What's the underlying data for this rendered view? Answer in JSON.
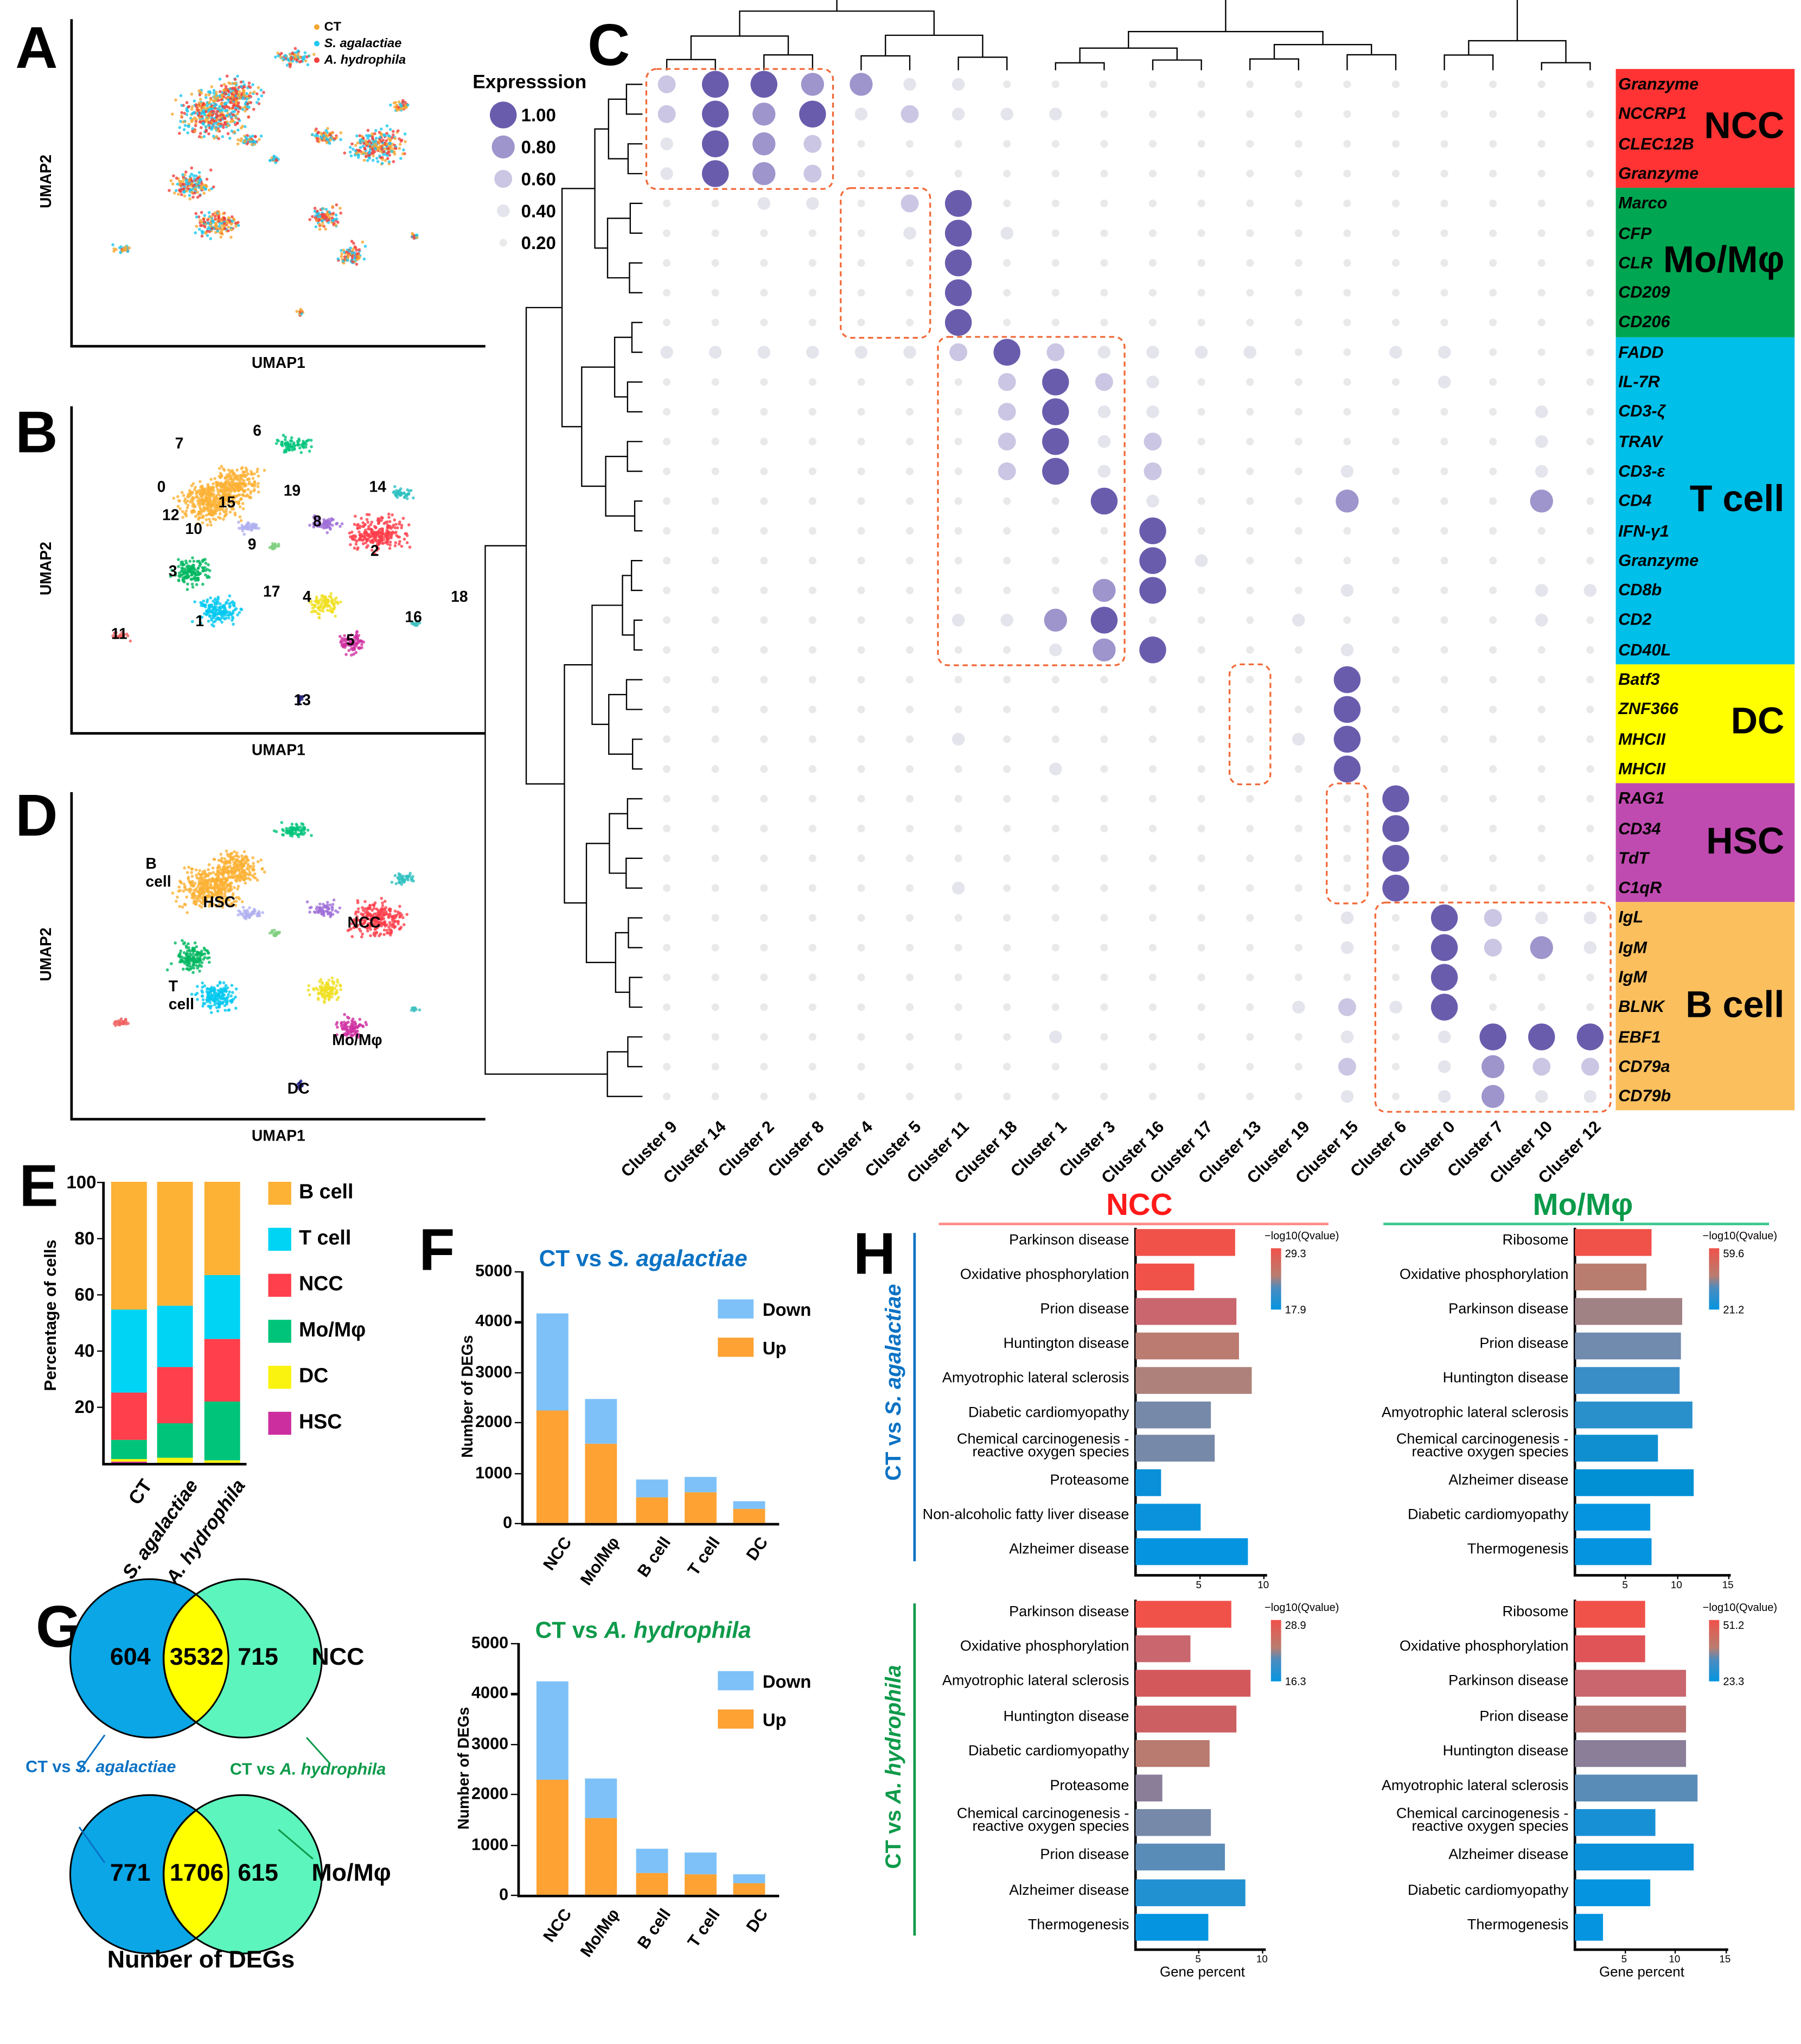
{
  "panels": {
    "A": "A",
    "B": "B",
    "C": "C",
    "D": "D",
    "E": "E",
    "F": "F",
    "G": "G",
    "H": "H"
  },
  "umap": {
    "xlabel": "UMAP1",
    "ylabel": "UMAP2",
    "legend": [
      {
        "label": "CT",
        "color": "#f7a733"
      },
      {
        "label": "S. agalactiae",
        "color": "#1ec8f0"
      },
      {
        "label": "A. hydrophila",
        "color": "#f0403c"
      }
    ],
    "cluster_labels": [
      "0",
      "1",
      "2",
      "3",
      "4",
      "5",
      "6",
      "7",
      "8",
      "9",
      "10",
      "11",
      "12",
      "13",
      "14",
      "15",
      "16",
      "17",
      "18",
      "19"
    ],
    "celltype_labels": [
      "B cell",
      "HSC",
      "NCC",
      "T cell",
      "Mo/Mφ",
      "DC"
    ]
  },
  "expression_legend": {
    "title": "Expresssion",
    "levels": [
      "1.00",
      "0.80",
      "0.60",
      "0.40",
      "0.20"
    ]
  },
  "chart_data": [
    {
      "type": "dotplot",
      "id": "C",
      "clusters": [
        "Cluster 9",
        "Cluster 14",
        "Cluster 2",
        "Cluster 8",
        "Cluster 4",
        "Cluster 5",
        "Cluster 11",
        "Cluster 18",
        "Cluster 1",
        "Cluster 3",
        "Cluster 16",
        "Cluster 17",
        "Cluster 13",
        "Cluster 19",
        "Cluster 15",
        "Cluster 6",
        "Cluster 0",
        "Cluster 7",
        "Cluster 10",
        "Cluster 12"
      ],
      "genes": [
        "Granzyme",
        "NCCRP1",
        "CLEC12B",
        "Granzyme",
        "Marco",
        "CFP",
        "CLR",
        "CD209",
        "CD206",
        "FADD",
        "IL-7R",
        "CD3-ζ",
        "TRAV",
        "CD3-ε",
        "CD4",
        "IFN-γ1",
        "Granzyme",
        "CD8b",
        "CD2",
        "CD40L",
        "Batf3",
        "ZNF366",
        "MHCII",
        "MHCII",
        "RAG1",
        "CD34",
        "TdT",
        "C1qR",
        "IgL",
        "IgM",
        "IgM",
        "BLNK",
        "EBF1",
        "CD79a",
        "CD79b"
      ],
      "groups": [
        {
          "label": "NCC",
          "start": 0,
          "end": 3,
          "color": "#ff3333"
        },
        {
          "label": "Mo/Mφ",
          "start": 4,
          "end": 8,
          "color": "#00a651"
        },
        {
          "label": "T cell",
          "start": 9,
          "end": 19,
          "color": "#00bfe8"
        },
        {
          "label": "DC",
          "start": 20,
          "end": 23,
          "color": "#ffff00"
        },
        {
          "label": "HSC",
          "start": 24,
          "end": 27,
          "color": "#c04bb0"
        },
        {
          "label": "B cell",
          "start": 28,
          "end": 34,
          "color": "#fbbf5e"
        }
      ],
      "boxes": [
        {
          "c0": 0,
          "c1": 3,
          "r0": 0,
          "r1": 3
        },
        {
          "c0": 4,
          "c1": 5,
          "r0": 4,
          "r1": 8
        },
        {
          "c0": 6,
          "c1": 9,
          "r0": 9,
          "r1": 19
        },
        {
          "c0": 12,
          "c1": 12,
          "r0": 20,
          "r1": 23
        },
        {
          "c0": 14,
          "c1": 14,
          "r0": 24,
          "r1": 27
        },
        {
          "c0": 15,
          "c1": 19,
          "r0": 28,
          "r1": 34
        }
      ],
      "expression_levels": [
        0,
        0.2,
        0.4,
        0.6,
        0.8,
        1.0
      ],
      "matrix": [
        "35544221111111111111",
        "35452322211111111111",
        "25431111111111111111",
        "25431111111111111111",
        "11221351111111111111",
        "11111252111111111111",
        "11111151111111111111",
        "11111151111111111111",
        "11111151111111111111",
        "22222235322221122111",
        "11111113532111112111",
        "11111113522111111121",
        "11111113523111111121",
        "11111113523111211121",
        "11111111152111411141",
        "11111111115111111111",
        "11111111115211111111",
        "11111111145111211122",
        "11111122451112111121",
        "11111111245111211111",
        "11111111111111511111",
        "11111111111111511111",
        "11111121111112511111",
        "11111111211111511111",
        "11111111111111151111",
        "11111111111111151111",
        "11111111111111151111",
        "11111121111111151111",
        "11111111111111215322",
        "11111111111111215342",
        "11111111111111115111",
        "11111111111112325111",
        "11111111211111212555",
        "11111111111111312433",
        "11111111111111212422"
      ]
    },
    {
      "type": "bar",
      "id": "E",
      "stacked": true,
      "ylabel": "Percentage of cells",
      "ylim": [
        0,
        100
      ],
      "yticks": [
        20,
        40,
        60,
        80,
        100
      ],
      "categories": [
        "CT",
        "S. agalactiae",
        "A. hydrophila"
      ],
      "series": [
        {
          "name": "HSC",
          "color": "#cc2e9f",
          "values": [
            0.5,
            0,
            0
          ]
        },
        {
          "name": "DC",
          "color": "#faf30f",
          "values": [
            1,
            2,
            1
          ]
        },
        {
          "name": "Mo/Mφ",
          "color": "#00c47a",
          "values": [
            6.5,
            12,
            21
          ]
        },
        {
          "name": "NCC",
          "color": "#ff3f4b",
          "values": [
            17,
            20,
            22
          ]
        },
        {
          "name": "T cell",
          "color": "#00d4f4",
          "values": [
            29.5,
            22,
            23
          ]
        },
        {
          "name": "B cell",
          "color": "#fdb235",
          "values": [
            45.5,
            44,
            33
          ]
        }
      ],
      "legend_order": [
        "B cell",
        "T cell",
        "NCC",
        "Mo/Mφ",
        "DC",
        "HSC"
      ]
    },
    {
      "type": "bar",
      "id": "F1",
      "stacked": true,
      "title_prefix": "CT vs ",
      "title_species": "S. agalactiae",
      "title_color": "#0a72c4",
      "ylabel": "Number of DEGs",
      "ylim": [
        0,
        5000
      ],
      "yticks": [
        0,
        1000,
        2000,
        3000,
        4000,
        5000
      ],
      "categories": [
        "NCC",
        "Mo/Mφ",
        "B cell",
        "T cell",
        "DC"
      ],
      "series": [
        {
          "name": "Up",
          "color": "#fda233",
          "values": [
            2230,
            1570,
            500,
            600,
            280
          ]
        },
        {
          "name": "Down",
          "color": "#7ec1f8",
          "values": [
            1920,
            900,
            370,
            310,
            150
          ]
        }
      ]
    },
    {
      "type": "bar",
      "id": "F2",
      "stacked": true,
      "title_prefix": "CT vs ",
      "title_species": "A. hydrophila",
      "title_color": "#0d9a4a",
      "ylabel": "Number of DEGs",
      "ylim": [
        0,
        5000
      ],
      "yticks": [
        0,
        1000,
        2000,
        3000,
        4000,
        5000
      ],
      "categories": [
        "NCC",
        "Mo/Mφ",
        "B cell",
        "T cell",
        "DC"
      ],
      "series": [
        {
          "name": "Up",
          "color": "#fda233",
          "values": [
            2280,
            1520,
            420,
            400,
            230
          ]
        },
        {
          "name": "Down",
          "color": "#7ec1f8",
          "values": [
            1970,
            800,
            490,
            450,
            170
          ]
        }
      ]
    },
    {
      "type": "bar",
      "id": "H1",
      "orientation": "horizontal",
      "xlabel": "",
      "xticks": [
        5,
        10
      ],
      "xlim": [
        0,
        10.3
      ],
      "colorbar": {
        "title": "−log10(Qvalue)",
        "max": "29.3",
        "min": "17.9"
      },
      "categories": [
        "Parkinson disease",
        "Oxidative phosphorylation",
        "Prion disease",
        "Huntington disease",
        "Amyotrophic lateral sclerosis",
        "Diabetic cardiomyopathy",
        "Chemical carcinogenesis -|reactive oxygen species",
        "Proteasome",
        "Non-alcoholic fatty liver disease",
        "Alzheimer disease"
      ],
      "values": [
        7.7,
        4.6,
        7.8,
        8.0,
        9.0,
        5.8,
        6.1,
        2.0,
        5.0,
        8.7
      ],
      "colors": [
        "#f0524a",
        "#f0524a",
        "#c9666e",
        "#bb7b70",
        "#ae827b",
        "#7789a8",
        "#7789a8",
        "#0a90d8",
        "#0a93dc",
        "#0595e0"
      ]
    },
    {
      "type": "bar",
      "id": "H2",
      "orientation": "horizontal",
      "xlabel": "",
      "xticks": [
        5,
        10,
        15
      ],
      "xlim": [
        0,
        15.3
      ],
      "colorbar": {
        "title": "−log10(Qvalue)",
        "max": "59.6",
        "min": "21.2"
      },
      "categories": [
        "Ribosome",
        "Oxidative phosphorylation",
        "Parkinson disease",
        "Prion disease",
        "Huntington disease",
        "Amyotrophic lateral sclerosis",
        "Chemical carcinogenesis -|reactive oxygen species",
        "Alzheimer disease",
        "Diabetic cardiomyopathy",
        "Thermogenesis"
      ],
      "values": [
        7.5,
        6.9,
        10.4,
        10.3,
        10.2,
        11.4,
        8.1,
        11.6,
        7.3,
        7.5
      ],
      "colors": [
        "#f0524a",
        "#b97d70",
        "#a08285",
        "#708bae",
        "#3a8ec8",
        "#2a90cc",
        "#108fd0",
        "#0290d4",
        "#0595e0",
        "#0595e0"
      ]
    },
    {
      "type": "bar",
      "id": "H3",
      "orientation": "horizontal",
      "xlabel": "Gene percent",
      "xticks": [
        5,
        10
      ],
      "xlim": [
        0,
        10.3
      ],
      "colorbar": {
        "title": "−log10(Qvalue)",
        "max": "28.9",
        "min": "16.3"
      },
      "categories": [
        "Parkinson disease",
        "Oxidative phosphorylation",
        "Amyotrophic lateral sclerosis",
        "Huntington disease",
        "Diabetic cardiomyopathy",
        "Proteasome",
        "Chemical carcinogenesis -|reactive oxygen species",
        "Prion disease",
        "Alzheimer disease",
        "Thermogenesis"
      ],
      "values": [
        7.5,
        4.3,
        9.0,
        7.9,
        5.8,
        2.1,
        5.9,
        7.0,
        8.6,
        5.7
      ],
      "colors": [
        "#f0524a",
        "#c9666e",
        "#d3585c",
        "#cc5f62",
        "#b97a70",
        "#8a7e98",
        "#7789a8",
        "#5a8cb8",
        "#2291d2",
        "#0595e0"
      ]
    },
    {
      "type": "bar",
      "id": "H4",
      "orientation": "horizontal",
      "xlabel": "Gene percent",
      "xticks": [
        5,
        10,
        15
      ],
      "xlim": [
        0,
        15.3
      ],
      "colorbar": {
        "title": "−log10(Qvalue)",
        "max": "51.2",
        "min": "23.3"
      },
      "categories": [
        "Ribosome",
        "Oxidative phosphorylation",
        "Parkinson disease",
        "Prion disease",
        "Huntington disease",
        "Amyotrophic lateral sclerosis",
        "Chemical carcinogenesis -|reactive oxygen species",
        "Alzheimer disease",
        "Diabetic cardiomyopathy",
        "Thermogenesis"
      ],
      "values": [
        6.9,
        6.9,
        11.0,
        11.0,
        11.0,
        12.2,
        8.0,
        11.8,
        7.5,
        2.8
      ],
      "colors": [
        "#f0524a",
        "#e05458",
        "#c9666e",
        "#b97270",
        "#8a7e98",
        "#5a8cb8",
        "#1890d6",
        "#0a90d8",
        "#0595e0",
        "#0595e0"
      ]
    }
  ],
  "legend_F": {
    "down": "Down",
    "up": "Up"
  },
  "venn": {
    "top": {
      "left": "604",
      "middle": "3532",
      "right": "715",
      "label": "NCC"
    },
    "bottom": {
      "left": "771",
      "middle": "1706",
      "right": "615",
      "label": "Mo/Mφ"
    },
    "left_set_prefix": "CT vs ",
    "left_set_species": "S. agalactiae",
    "right_set_prefix": "CT vs ",
    "right_set_species": "A. hydrophila",
    "caption": "Nunber of DEGs",
    "colors": {
      "left": "#0aa6e6",
      "right": "#5cf5bd",
      "overlap": "#ffff00"
    }
  },
  "H_headers": {
    "ncc": "NCC",
    "mo": "Mo/Mφ",
    "row1_prefix": "CT vs ",
    "row1_species": "S. agalactiae",
    "row2_prefix": "CT vs ",
    "row2_species": "A. hydrophila"
  }
}
